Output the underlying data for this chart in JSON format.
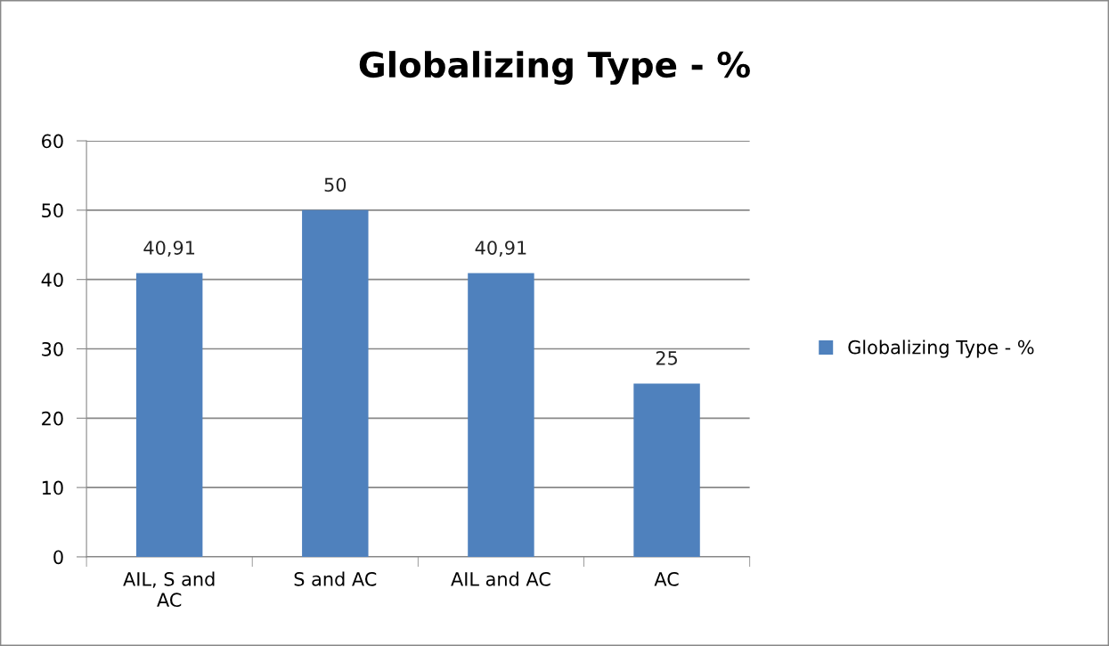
{
  "chart_data": {
    "type": "bar",
    "title": "Globalizing Type - %",
    "categories": [
      "AIL, S and AC",
      "S and AC",
      "AIL and AC",
      "AC"
    ],
    "series": [
      {
        "name": "Globalizing Type - %",
        "color": "#4f81bd",
        "values": [
          40.91,
          50,
          40.91,
          25
        ],
        "value_labels": [
          "40,91",
          "50",
          "40,91",
          "25"
        ]
      }
    ],
    "ylim": [
      0,
      60
    ],
    "yticks": [
      0,
      10,
      20,
      30,
      40,
      50,
      60
    ],
    "grid": "y",
    "legend": "right"
  }
}
